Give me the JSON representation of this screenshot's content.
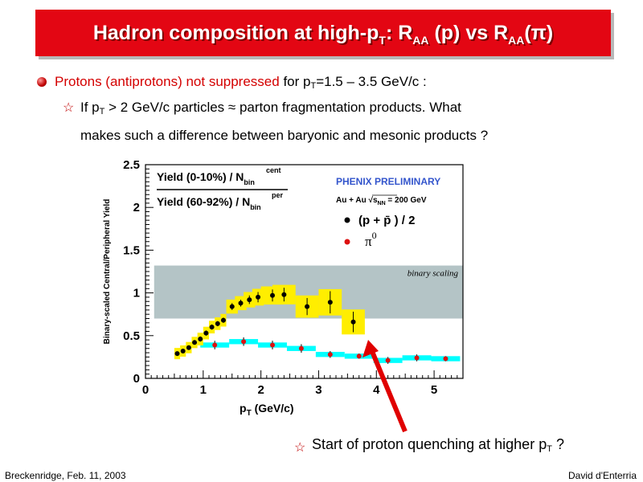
{
  "slide": {
    "title_main": "Hadron composition at high-p",
    "title_sub_t": "T",
    "title_mid": ": R",
    "title_sub_aa1": "AA",
    "title_p": " (p) vs R",
    "title_sub_aa2": "AA",
    "title_end": "(π)",
    "bullet_red": "Protons (antiprotons) not suppressed",
    "bullet_rest_1": " for p",
    "bullet_sub_t": "T",
    "bullet_rest_2": "=1.5 – 3.5 GeV/c :",
    "sub_1a": "If p",
    "sub_1_t": "T",
    "sub_1b": " > 2 GeV/c particles ≈ parton fragmentation products. What",
    "sub_2": "makes such a difference between baryonic and mesonic products ?",
    "note_a": "Start of proton quenching at higher p",
    "note_t": "T",
    "note_b": " ?",
    "footer_left": "Breckenridge, Feb. 11, 2003",
    "footer_right": "David d'Enterria"
  },
  "colors": {
    "title_bg": "#e30613",
    "band": "#b4c4c6",
    "proton_box": "#ffee00",
    "pion_box": "#00ffff",
    "arrow": "#e00000",
    "pion_marker": "#dd1111"
  },
  "chart_data": {
    "type": "scatter",
    "xlabel_main": "p",
    "xlabel_sub": "T",
    "xlabel_unit": " (GeV/c)",
    "ylabel": "Binary-scaled Central/Peripheral Yield",
    "xlim": [
      0,
      5.5
    ],
    "ylim": [
      0,
      2.5
    ],
    "xticks": [
      "0",
      "1",
      "2",
      "3",
      "4",
      "5"
    ],
    "yticks": [
      "0",
      "0.5",
      "1",
      "1.5",
      "2",
      "2.5"
    ],
    "band_label": "binary scaling",
    "band": [
      0.7,
      1.32
    ],
    "ratio_num": "Yield (0-10%) / N",
    "ratio_num_sup": "cent",
    "ratio_num_sub": "bin",
    "ratio_den": "Yield (60-92%) / N",
    "ratio_den_sup": "per",
    "ratio_den_sub": "bin",
    "legend_title": "PHENIX PRELIMINARY",
    "legend_system_a": "Au + Au",
    "legend_system_b": "√s",
    "legend_system_sub": "NN",
    "legend_system_c": " = 200 GeV",
    "series": [
      {
        "name": "(p + p̄ ) / 2",
        "x": [
          0.55,
          0.65,
          0.75,
          0.85,
          0.95,
          1.05,
          1.15,
          1.25,
          1.35,
          1.5,
          1.65,
          1.8,
          1.95,
          2.2,
          2.4,
          2.8,
          3.2,
          3.6
        ],
        "y": [
          0.29,
          0.32,
          0.36,
          0.42,
          0.46,
          0.53,
          0.6,
          0.64,
          0.68,
          0.84,
          0.88,
          0.92,
          0.95,
          0.97,
          0.98,
          0.84,
          0.89,
          0.66
        ],
        "err": [
          0.02,
          0.02,
          0.02,
          0.02,
          0.03,
          0.03,
          0.03,
          0.03,
          0.03,
          0.04,
          0.04,
          0.05,
          0.06,
          0.07,
          0.08,
          0.1,
          0.13,
          0.12
        ]
      },
      {
        "name": "π0",
        "x": [
          1.2,
          1.7,
          2.2,
          2.7,
          3.2,
          3.7,
          4.2,
          4.7,
          5.2
        ],
        "y": [
          0.39,
          0.43,
          0.39,
          0.35,
          0.28,
          0.26,
          0.21,
          0.24,
          0.23
        ],
        "err": [
          0.05,
          0.05,
          0.05,
          0.05,
          0.04,
          0.03,
          0.04,
          0.04,
          0.03
        ]
      }
    ]
  }
}
